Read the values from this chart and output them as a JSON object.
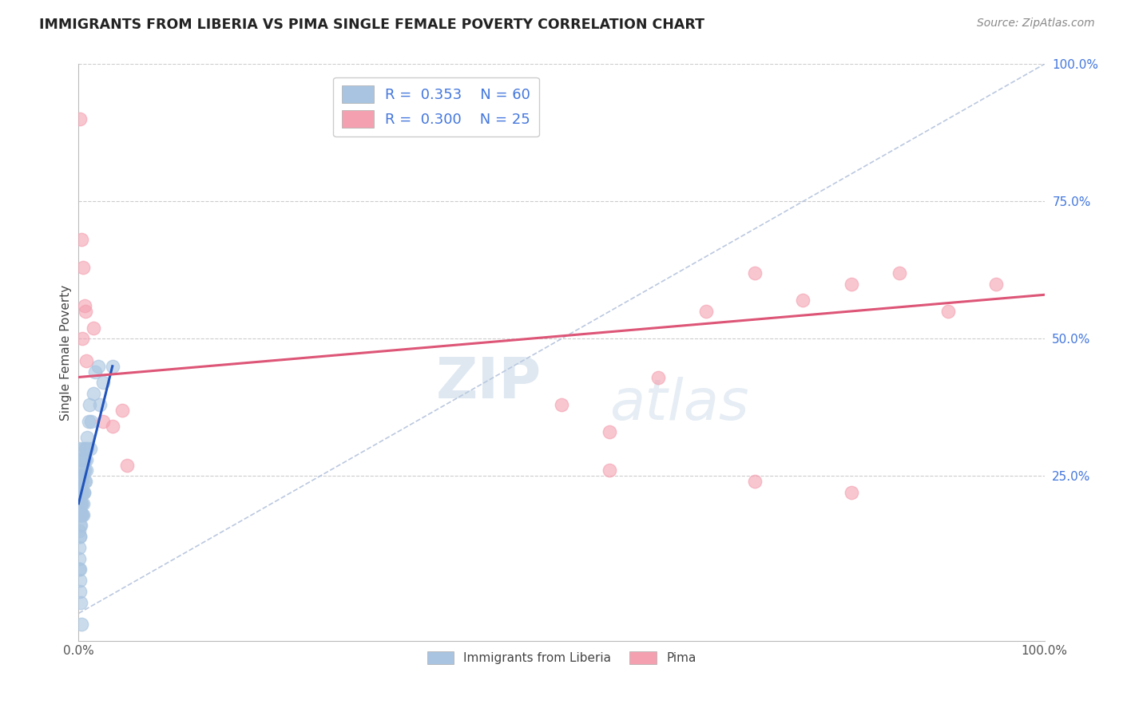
{
  "title": "IMMIGRANTS FROM LIBERIA VS PIMA SINGLE FEMALE POVERTY CORRELATION CHART",
  "source": "Source: ZipAtlas.com",
  "ylabel": "Single Female Poverty",
  "legend_blue_label": "Immigrants from Liberia",
  "legend_pink_label": "Pima",
  "R_blue": 0.353,
  "N_blue": 60,
  "R_pink": 0.3,
  "N_pink": 25,
  "blue_color": "#a8c4e0",
  "pink_color": "#f4a0b0",
  "blue_line_color": "#2255bb",
  "pink_line_color": "#dd5577",
  "diag_line_color": "#aabbd8",
  "grid_color": "#cccccc",
  "title_color": "#222222",
  "source_color": "#888888",
  "right_tick_color": "#4477dd",
  "legend_R_color": "#4477dd",
  "blue_scatter_x": [
    0.05,
    0.08,
    0.1,
    0.12,
    0.15,
    0.18,
    0.2,
    0.25,
    0.3,
    0.3,
    0.35,
    0.4,
    0.45,
    0.5,
    0.5,
    0.55,
    0.6,
    0.65,
    0.7,
    0.8,
    0.9,
    1.0,
    1.1,
    1.2,
    1.3,
    1.5,
    1.7,
    2.0,
    2.2,
    2.5,
    0.05,
    0.07,
    0.09,
    0.12,
    0.14,
    0.17,
    0.2,
    0.22,
    0.25,
    0.28,
    0.3,
    0.35,
    0.4,
    0.45,
    0.5,
    0.55,
    0.6,
    0.7,
    0.8,
    0.9,
    0.05,
    0.06,
    0.08,
    0.1,
    0.12,
    0.15,
    0.17,
    0.2,
    0.3,
    3.5
  ],
  "blue_scatter_y": [
    30.0,
    25.0,
    22.0,
    20.0,
    28.0,
    18.0,
    22.0,
    24.0,
    20.0,
    18.0,
    25.0,
    22.0,
    28.0,
    30.0,
    18.0,
    22.0,
    26.0,
    24.0,
    30.0,
    28.0,
    32.0,
    35.0,
    38.0,
    30.0,
    35.0,
    40.0,
    44.0,
    45.0,
    38.0,
    42.0,
    15.0,
    18.0,
    14.0,
    20.0,
    16.0,
    22.0,
    18.0,
    24.0,
    16.0,
    20.0,
    22.0,
    18.0,
    24.0,
    20.0,
    26.0,
    22.0,
    28.0,
    24.0,
    26.0,
    30.0,
    12.0,
    8.0,
    10.0,
    14.0,
    6.0,
    8.0,
    4.0,
    2.0,
    -2.0,
    45.0
  ],
  "pink_scatter_x": [
    0.1,
    0.3,
    0.5,
    0.6,
    0.7,
    1.5,
    2.5,
    4.5,
    0.4,
    0.8,
    3.5,
    5.0,
    50.0,
    55.0,
    60.0,
    65.0,
    70.0,
    75.0,
    80.0,
    85.0,
    90.0,
    95.0,
    55.0,
    70.0,
    80.0
  ],
  "pink_scatter_y": [
    90.0,
    68.0,
    63.0,
    56.0,
    55.0,
    52.0,
    35.0,
    37.0,
    50.0,
    46.0,
    34.0,
    27.0,
    38.0,
    33.0,
    43.0,
    55.0,
    62.0,
    57.0,
    60.0,
    62.0,
    55.0,
    60.0,
    26.0,
    24.0,
    22.0
  ],
  "blue_line_x_start": 0.0,
  "blue_line_x_end": 3.5,
  "blue_line_y_start": 20.0,
  "blue_line_y_end": 45.0,
  "pink_line_x_start": 0.0,
  "pink_line_x_end": 100.0,
  "pink_line_y_start": 43.0,
  "pink_line_y_end": 58.0,
  "watermark_top": "ZIP",
  "watermark_bottom": "atlas",
  "xlim": [
    0,
    100
  ],
  "ylim": [
    -5,
    100
  ],
  "yticks_right": [
    25,
    50,
    75,
    100
  ],
  "ytick_labels_right": [
    "25.0%",
    "50.0%",
    "75.0%",
    "100.0%"
  ]
}
